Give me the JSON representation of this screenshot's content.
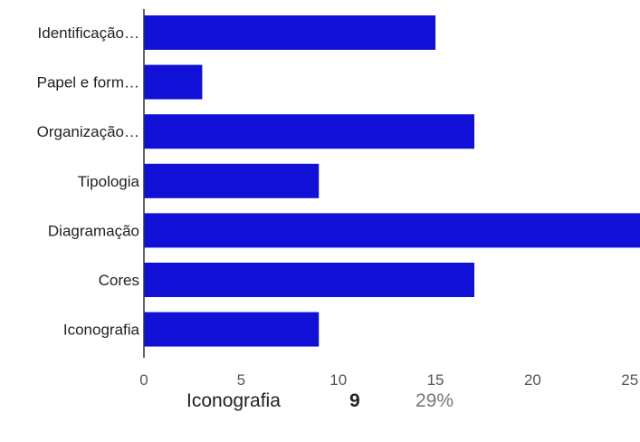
{
  "colors": {
    "bar": "#1010d6",
    "axis": "#333333"
  },
  "chart_data": {
    "type": "bar",
    "orientation": "horizontal",
    "title": "",
    "xlabel": "",
    "ylabel": "",
    "categories": [
      "Identificação…",
      "Papel e form…",
      "Organização…",
      "Tipologia",
      "Diagramação",
      "Cores",
      "Iconografia"
    ],
    "values": [
      15,
      3,
      17,
      9,
      26,
      17,
      9
    ],
    "xlim": [
      0,
      26
    ],
    "xticks": [
      0,
      5,
      10,
      15,
      20,
      25
    ],
    "grid": false
  },
  "legend": {
    "label": "Iconografia",
    "value": "9",
    "percent": "29%"
  }
}
